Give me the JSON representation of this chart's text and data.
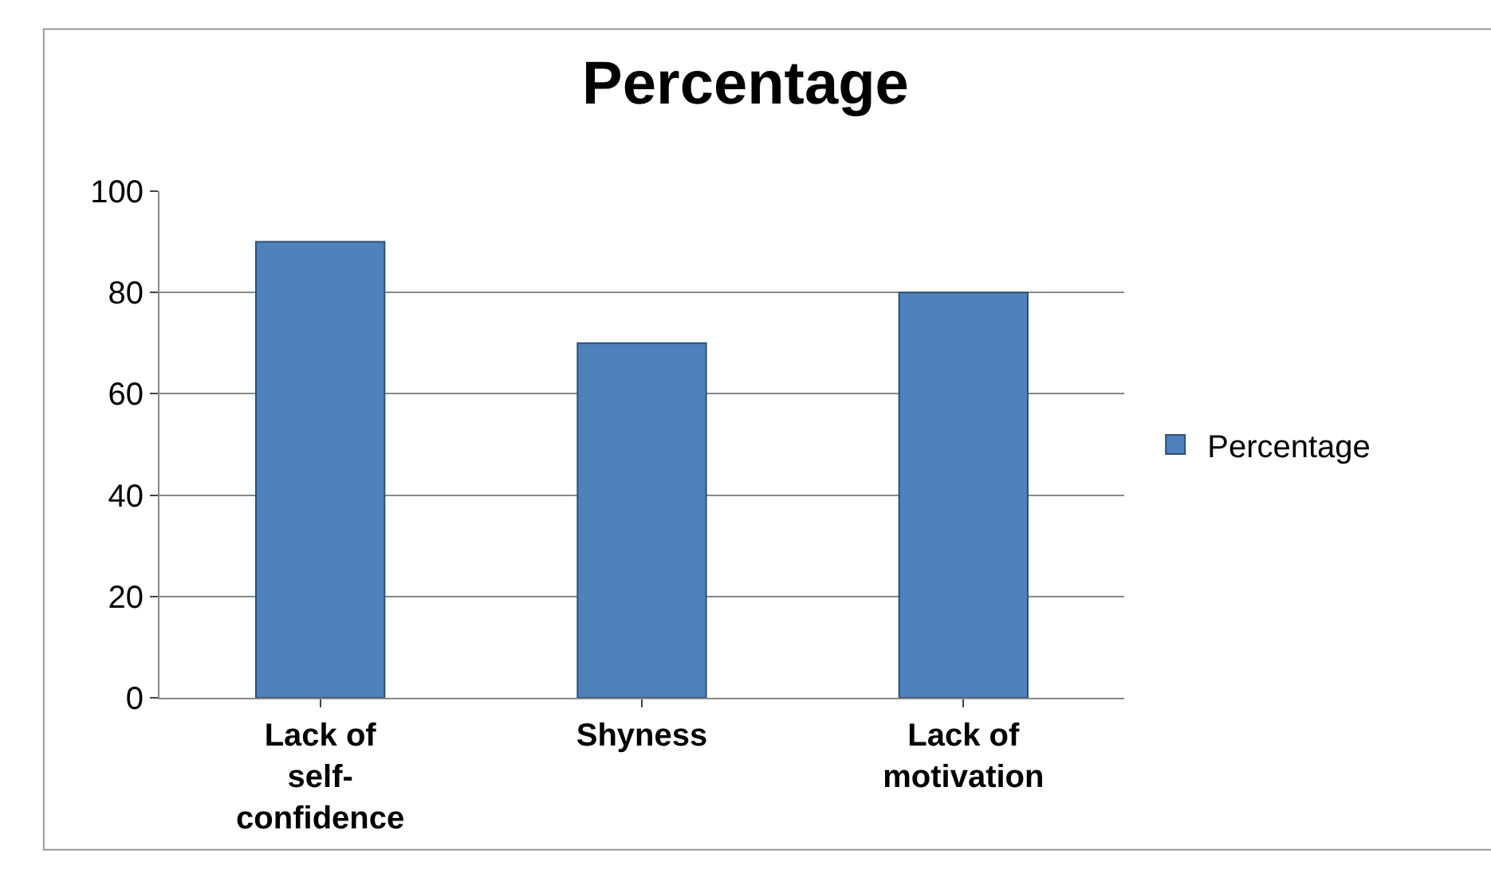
{
  "chart_data": {
    "type": "bar",
    "title": "Percentage",
    "categories": [
      "Lack of self-confidence",
      "Shyness",
      "Lack of motivation"
    ],
    "series": [
      {
        "name": "Percentage",
        "color": "#4f81bd",
        "values": [
          90,
          70,
          80
        ]
      }
    ],
    "ylim": [
      0,
      100
    ],
    "yticks": [
      0,
      20,
      40,
      60,
      80,
      100
    ],
    "grid": "y",
    "legend": "right"
  }
}
